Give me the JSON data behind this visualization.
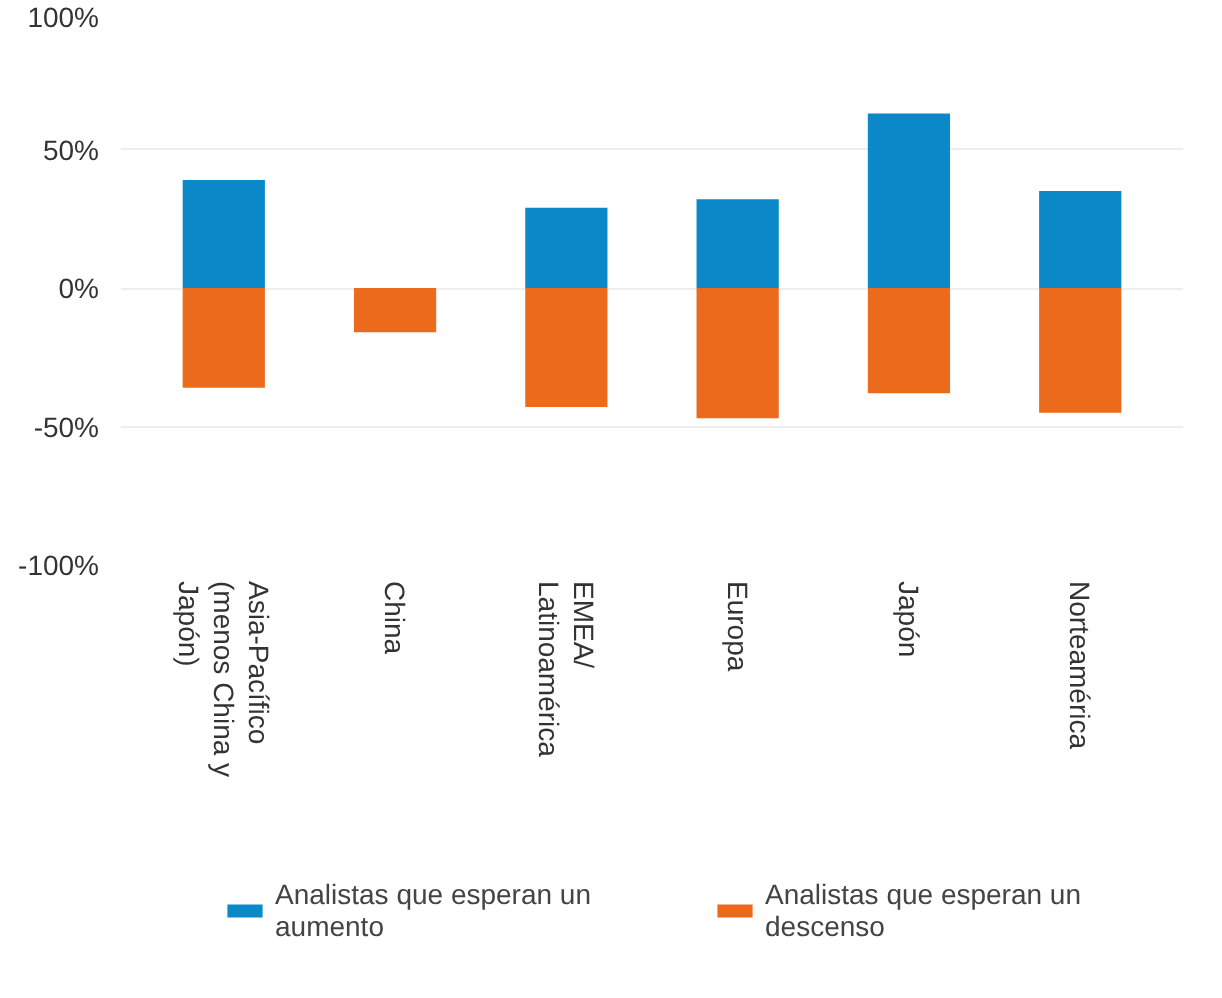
{
  "chart_data": {
    "type": "bar",
    "stacked": true,
    "categories": [
      "Asia-Pacífico (menos China y Japón)",
      "China",
      "EMEA/ Latinoamérica",
      "Europa",
      "Japón",
      "Norteamérica"
    ],
    "series": [
      {
        "name": "Analistas que esperan un aumento",
        "color": "#0a88c8",
        "values": [
          39,
          null,
          29,
          32,
          63,
          35
        ]
      },
      {
        "name": "Analistas que esperan un descenso",
        "color": "#ec6a1c",
        "values": [
          -36,
          -16,
          -43,
          -47,
          -38,
          -45
        ]
      }
    ],
    "ylim": [
      -100,
      100
    ],
    "yticks": [
      {
        "value": 100,
        "label": "100%"
      },
      {
        "value": 50,
        "label": "50%"
      },
      {
        "value": 0,
        "label": "0%"
      },
      {
        "value": -50,
        "label": "-50%"
      },
      {
        "value": -100,
        "label": "-100%"
      }
    ],
    "grid": "y",
    "legend": "bottom"
  }
}
